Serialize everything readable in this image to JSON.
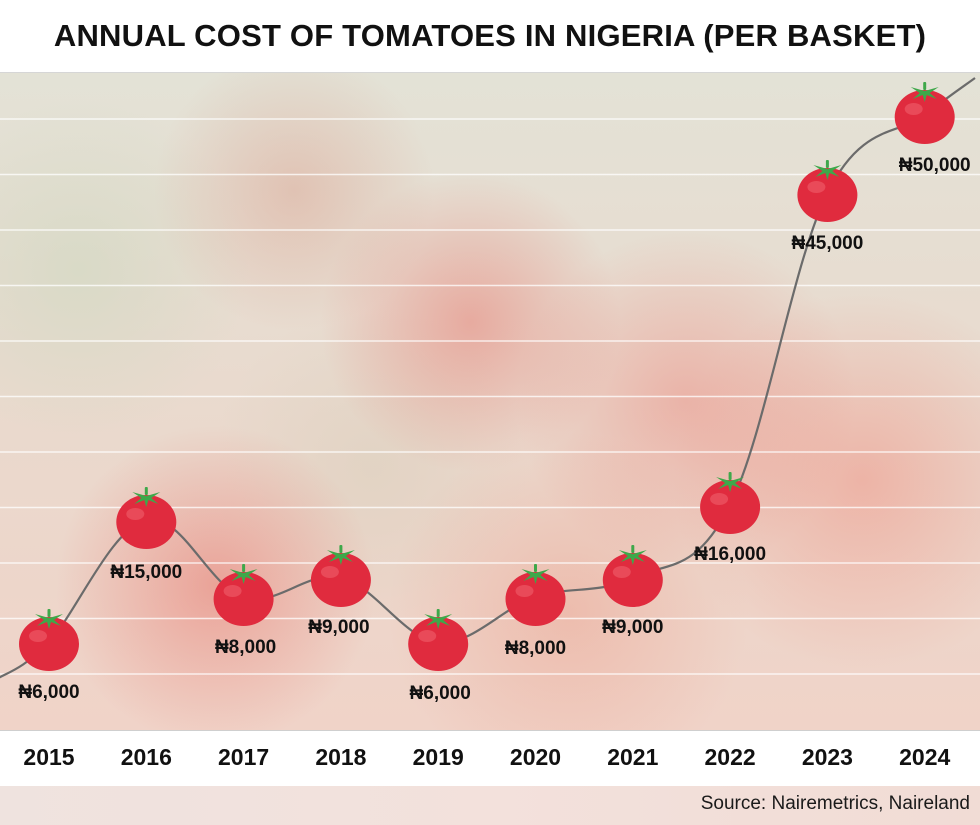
{
  "title": "ANNUAL COST OF TOMATOES IN NIGERIA (PER BASKET)",
  "source": "Source: Nairemetrics, Naireland",
  "colors": {
    "tomato": "#e02b3e",
    "tomato_highlight": "#f5707a",
    "leaf": "#3ea84a",
    "line": "#6b6b6b",
    "gridline": "#ffffff"
  },
  "chart_data": {
    "type": "line",
    "title": "ANNUAL COST OF TOMATOES IN NIGERIA (PER BASKET)",
    "xlabel": "",
    "ylabel": "",
    "categories": [
      "2015",
      "2016",
      "2017",
      "2018",
      "2019",
      "2020",
      "2021",
      "2022",
      "2023",
      "2024"
    ],
    "values": [
      6000,
      15000,
      8000,
      9000,
      6000,
      8000,
      9000,
      16000,
      45000,
      50000
    ],
    "data_labels": [
      "₦6,000",
      "₦15,000",
      "₦8,000",
      "₦9,000",
      "₦6,000",
      "₦8,000",
      "₦9,000",
      "₦16,000",
      "₦45,000",
      "₦50,000"
    ],
    "marker": "tomato-icon",
    "grid": true,
    "legend": "none"
  }
}
